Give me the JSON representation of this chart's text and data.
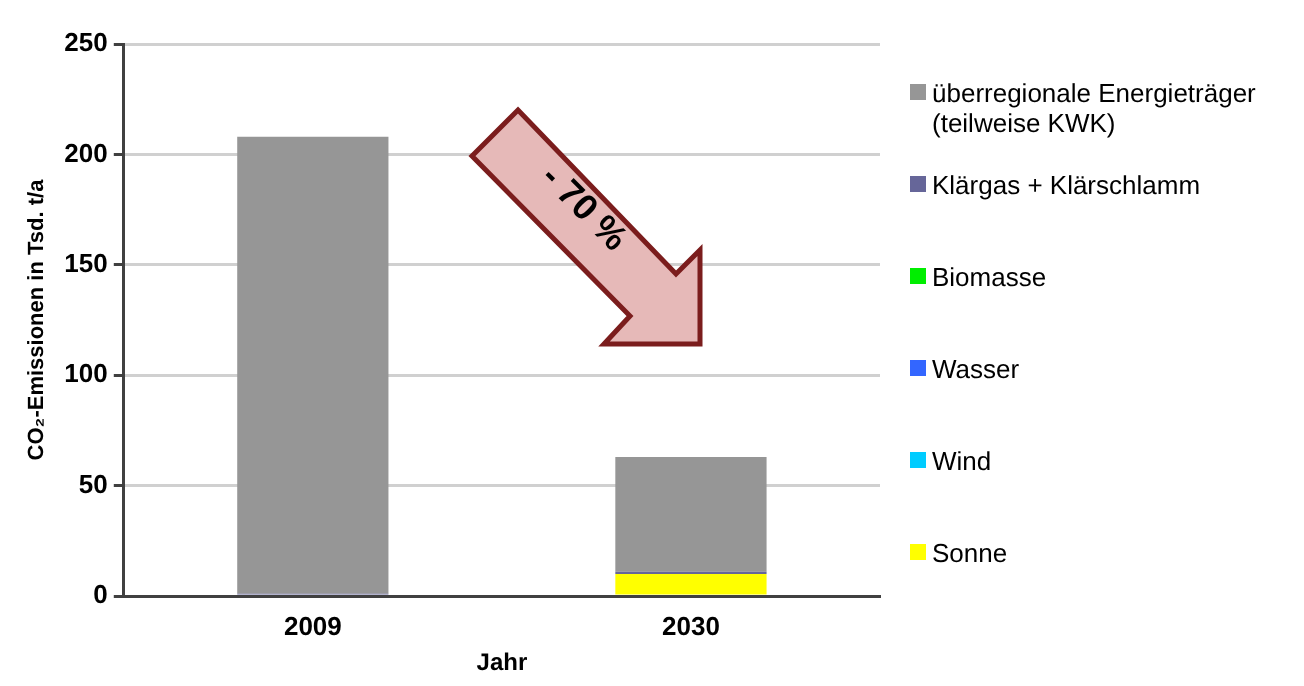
{
  "chart_data": {
    "type": "bar",
    "stacked": true,
    "ylabel": "CO₂-Emissionen in Tsd. t/a",
    "xlabel": "Jahr",
    "categories": [
      "2009",
      "2030"
    ],
    "series": [
      {
        "name": "Sonne",
        "color": "#ffff00",
        "values": [
          0,
          10
        ]
      },
      {
        "name": "Wind",
        "color": "#00ccff",
        "values": [
          0,
          0
        ]
      },
      {
        "name": "Wasser",
        "color": "#3366ff",
        "values": [
          0,
          0
        ]
      },
      {
        "name": "Biomasse",
        "color": "#00ee00",
        "values": [
          0,
          0
        ]
      },
      {
        "name": "Klärgas + Klärschlamm",
        "color": "#666699",
        "values": [
          1,
          1
        ]
      },
      {
        "name": "überregionale Energieträger (teilweise KWK)",
        "color": "#969696",
        "values": [
          207,
          52
        ]
      }
    ],
    "ylim": [
      0,
      250
    ],
    "yticks": [
      0,
      50,
      100,
      150,
      200,
      250
    ],
    "grid": "y",
    "legend": "right",
    "annotations": [
      "- 70 %"
    ]
  }
}
